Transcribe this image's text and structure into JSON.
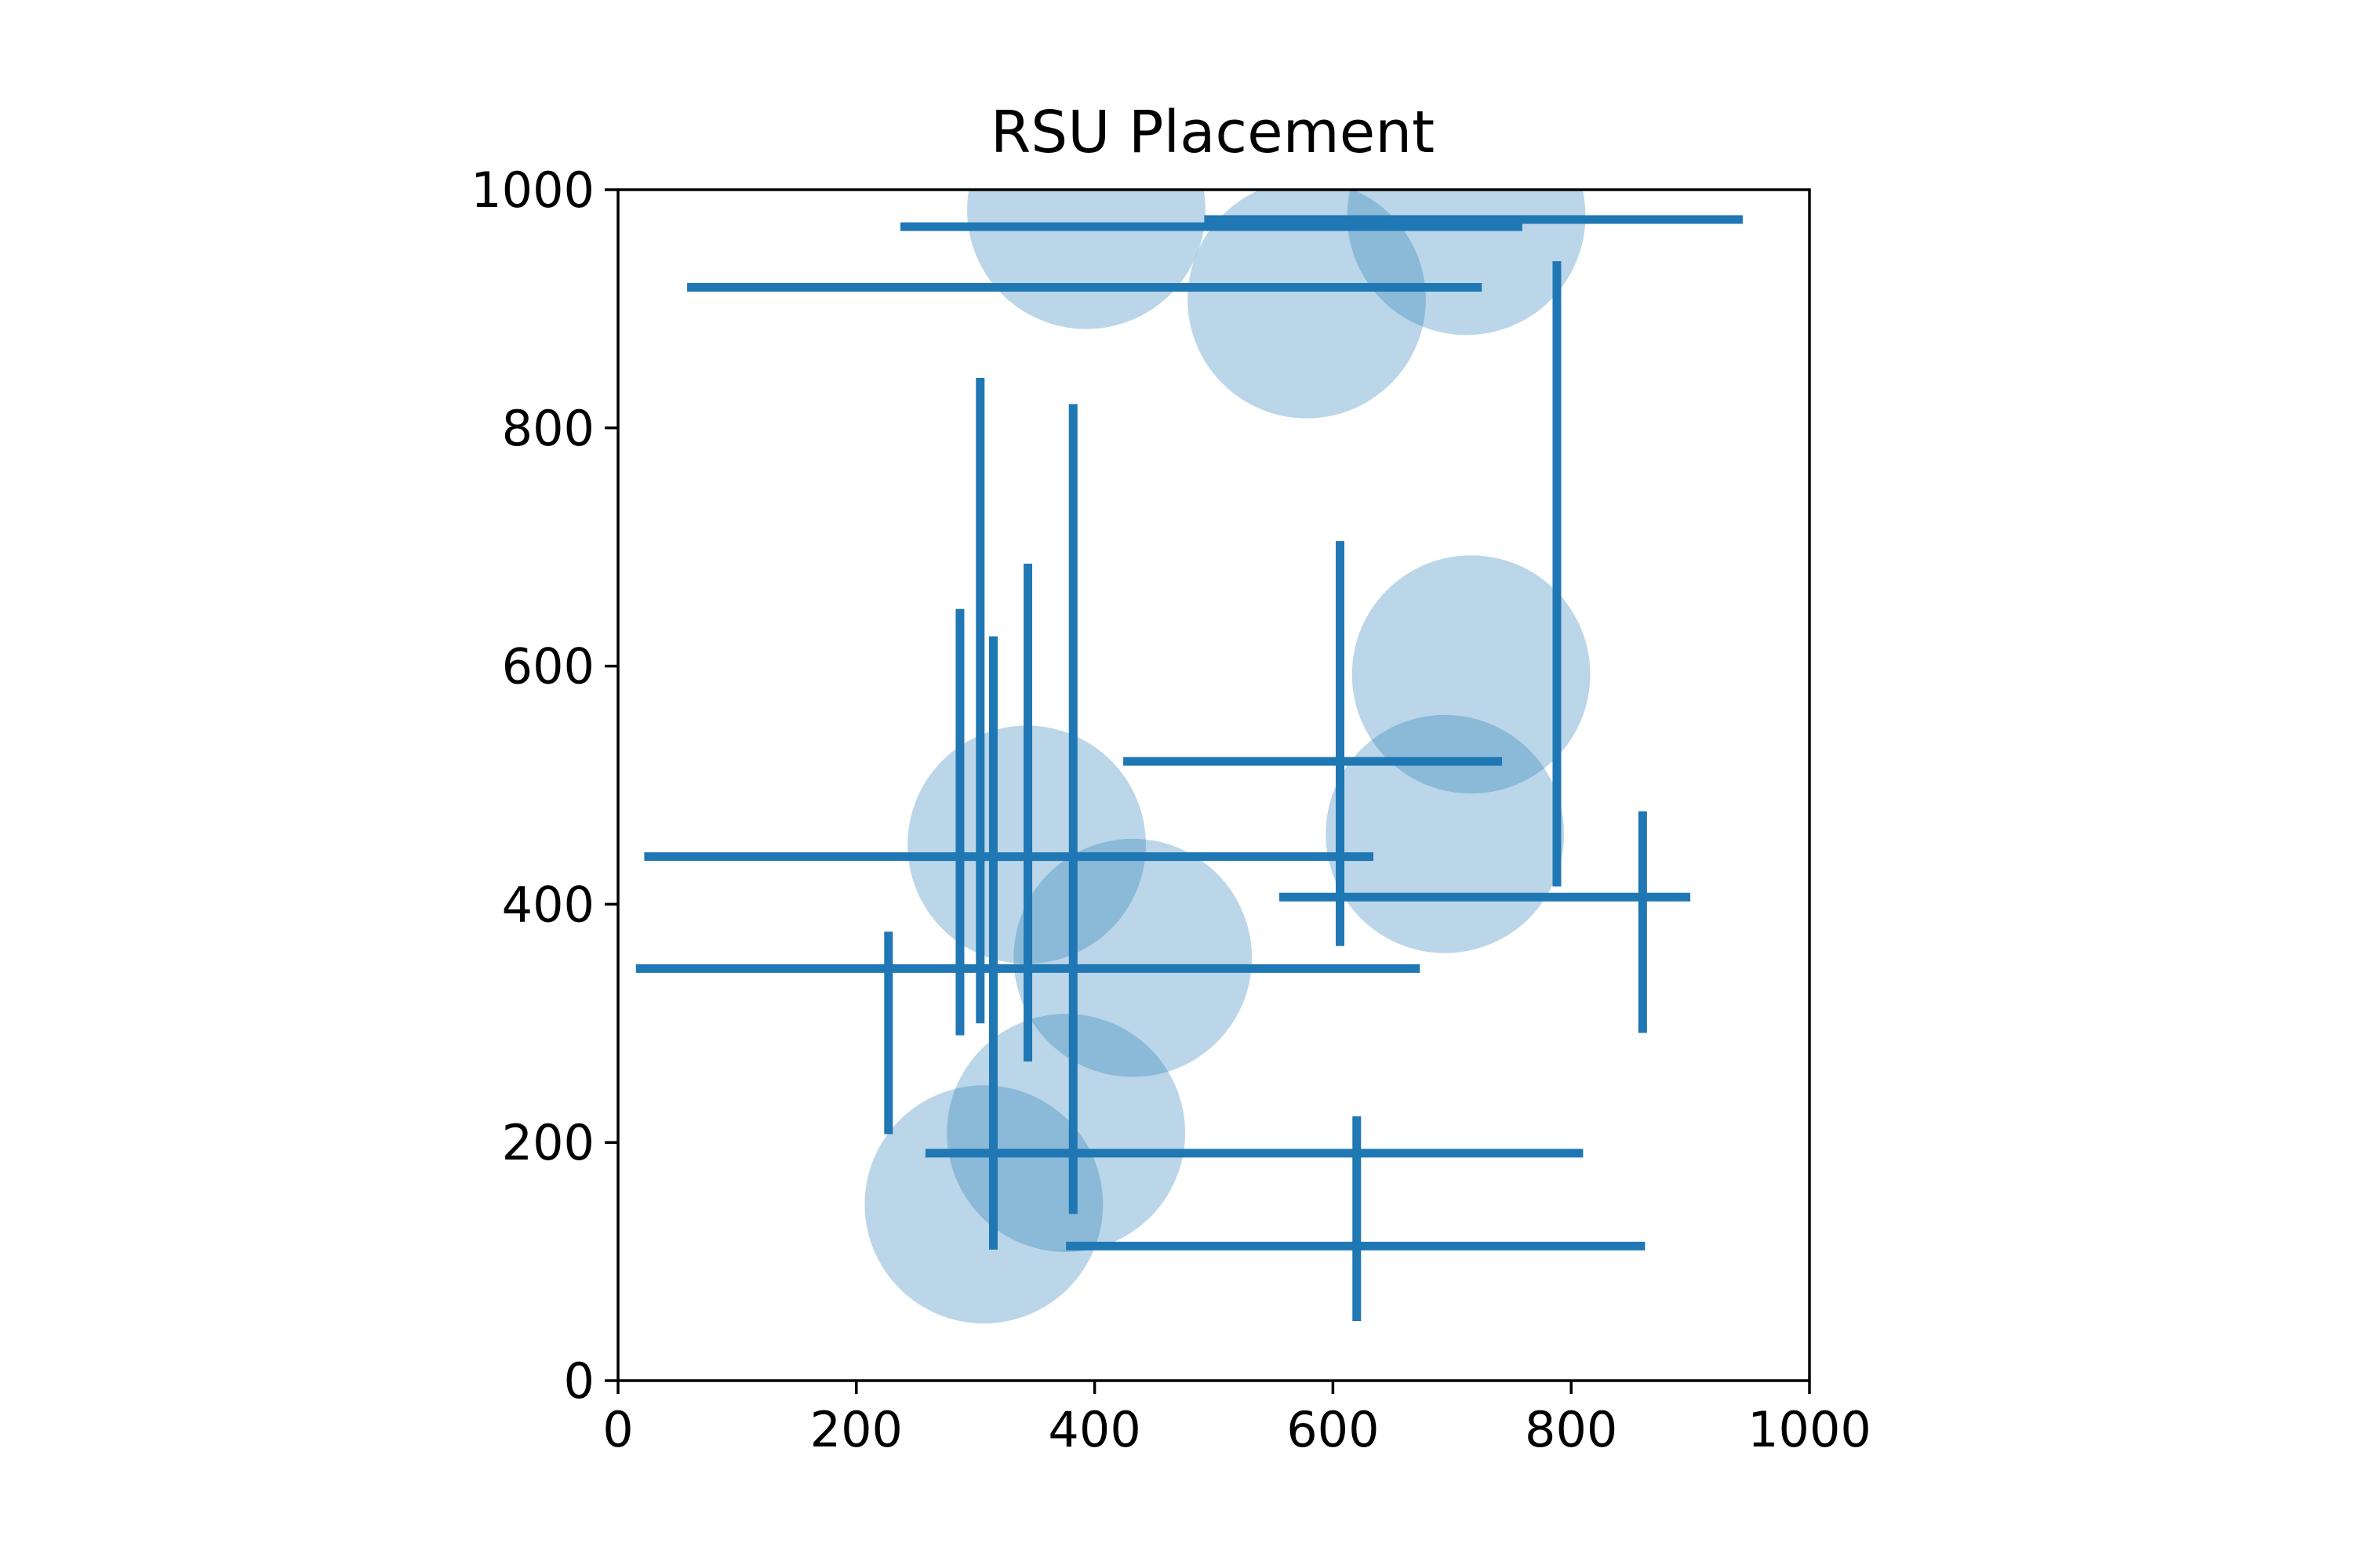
{
  "chart_data": {
    "type": "scatter",
    "title": "RSU Placement",
    "xlabel": "",
    "ylabel": "",
    "xlim": [
      0,
      1000
    ],
    "ylim": [
      0,
      1000
    ],
    "x_ticks": [
      "0",
      "200",
      "400",
      "600",
      "800",
      "1000"
    ],
    "y_ticks": [
      "0",
      "200",
      "400",
      "600",
      "800",
      "1000"
    ],
    "grid": false,
    "aspect": "equal",
    "colors": {
      "road": "#1f77b4",
      "coverage": "#1f77b4",
      "coverage_alpha": 0.3
    },
    "rsu_coverage": {
      "radius": 100,
      "centers": [
        {
          "x": 393,
          "y": 983
        },
        {
          "x": 578,
          "y": 908
        },
        {
          "x": 712,
          "y": 978
        },
        {
          "x": 716,
          "y": 593
        },
        {
          "x": 694,
          "y": 459
        },
        {
          "x": 343,
          "y": 450
        },
        {
          "x": 432,
          "y": 355
        },
        {
          "x": 376,
          "y": 208
        },
        {
          "x": 307,
          "y": 148
        }
      ]
    },
    "road_segments": {
      "horizontal": [
        {
          "y": 969,
          "x_start": 237,
          "x_end": 759
        },
        {
          "y": 975,
          "x_start": 492,
          "x_end": 944
        },
        {
          "y": 918,
          "x_start": 58,
          "x_end": 725
        },
        {
          "y": 520,
          "x_start": 424,
          "x_end": 742
        },
        {
          "y": 440,
          "x_start": 22,
          "x_end": 634
        },
        {
          "y": 406,
          "x_start": 555,
          "x_end": 900
        },
        {
          "y": 346,
          "x_start": 15,
          "x_end": 673
        },
        {
          "y": 191,
          "x_start": 258,
          "x_end": 810
        },
        {
          "y": 113,
          "x_start": 376,
          "x_end": 862
        }
      ],
      "vertical": [
        {
          "x": 304,
          "y_start": 300,
          "y_end": 842
        },
        {
          "x": 382,
          "y_start": 140,
          "y_end": 820
        },
        {
          "x": 344,
          "y_start": 268,
          "y_end": 686
        },
        {
          "x": 287,
          "y_start": 290,
          "y_end": 648
        },
        {
          "x": 315,
          "y_start": 110,
          "y_end": 625
        },
        {
          "x": 227,
          "y_start": 207,
          "y_end": 377
        },
        {
          "x": 606,
          "y_start": 365,
          "y_end": 705
        },
        {
          "x": 788,
          "y_start": 415,
          "y_end": 940
        },
        {
          "x": 860,
          "y_start": 292,
          "y_end": 478
        },
        {
          "x": 620,
          "y_start": 50,
          "y_end": 222
        }
      ]
    }
  }
}
